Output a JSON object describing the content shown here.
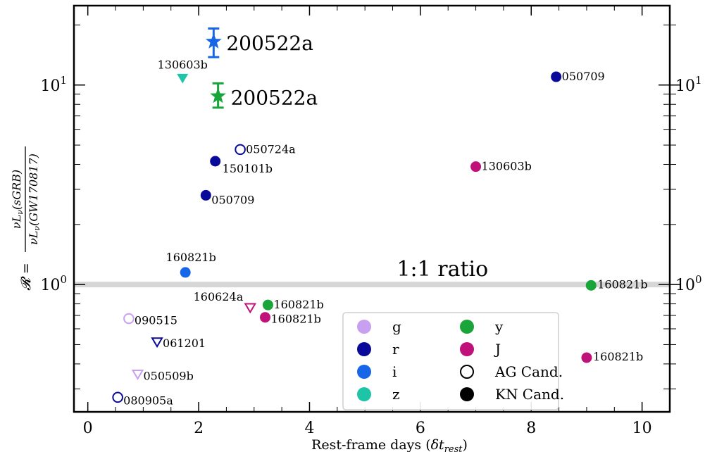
{
  "chart_data": {
    "type": "scatter",
    "xlabel": "Rest-frame days (δt_rest)",
    "ylabel": "R = νLν(sGRB) / νLν(GW170817)",
    "ylabel_parts": {
      "lhs": "𝓡 =",
      "numerator": "νL",
      "numerator_sub": "ν",
      "numerator_arg": "(sGRB)",
      "denominator": "νL",
      "denominator_sub": "ν",
      "denominator_arg": "(GW170817)"
    },
    "xlabel_parts": {
      "main": "Rest-frame days (",
      "delta": "δt",
      "sub": "rest",
      "close": ")"
    },
    "xlim": [
      -0.25,
      10.5
    ],
    "ylim": [
      0.23,
      25
    ],
    "yscale": "log",
    "x_ticks": [
      "0",
      "2",
      "4",
      "6",
      "8",
      "10"
    ],
    "y_ticks": [
      {
        "value": 1,
        "base": "10",
        "exp": "0"
      },
      {
        "value": 10,
        "base": "10",
        "exp": "1"
      }
    ],
    "reference_line": {
      "y": 1,
      "label": "1:1 ratio"
    },
    "colors": {
      "g": "#c9a0f0",
      "r": "#0a0a9a",
      "i": "#1766e8",
      "z": "#1ec4a8",
      "y": "#1aa53a",
      "J": "#c0107a",
      "ref_line": "#d6d6d6"
    },
    "legend": {
      "position": "lower-right",
      "entries": [
        {
          "label": "g",
          "marker": "circle-filled",
          "color": "#c9a0f0"
        },
        {
          "label": "r",
          "marker": "circle-filled",
          "color": "#0a0a9a"
        },
        {
          "label": "i",
          "marker": "circle-filled",
          "color": "#1766e8"
        },
        {
          "label": "z",
          "marker": "circle-filled",
          "color": "#1ec4a8"
        },
        {
          "label": "y",
          "marker": "circle-filled",
          "color": "#1aa53a"
        },
        {
          "label": "J",
          "marker": "circle-filled",
          "color": "#c0107a"
        },
        {
          "label": "AG Cand.",
          "marker": "circle-open",
          "color": "#000000"
        },
        {
          "label": "KN Cand.",
          "marker": "circle-filled",
          "color": "#000000"
        }
      ]
    },
    "points": [
      {
        "label": "200522a",
        "x": 2.27,
        "y": 16.5,
        "yerr": [
          13.8,
          19.2
        ],
        "band": "i",
        "marker": "star",
        "big": true
      },
      {
        "label": "200522a",
        "x": 2.35,
        "y": 8.8,
        "yerr": [
          7.7,
          10.2
        ],
        "band": "y",
        "marker": "star",
        "big": true
      },
      {
        "label": "130603b",
        "x": 1.71,
        "y": 10.8,
        "band": "z",
        "marker": "triangle-filled"
      },
      {
        "label": "050709",
        "x": 8.45,
        "y": 11.0,
        "band": "r",
        "marker": "circle-filled"
      },
      {
        "label": "050724a",
        "x": 2.75,
        "y": 4.75,
        "band": "r",
        "marker": "circle-open"
      },
      {
        "label": "150101b",
        "x": 2.3,
        "y": 4.15,
        "band": "r",
        "marker": "circle-filled"
      },
      {
        "label": "050709",
        "x": 2.13,
        "y": 2.8,
        "band": "r",
        "marker": "circle-filled"
      },
      {
        "label": "130603b",
        "x": 7.0,
        "y": 3.9,
        "band": "J",
        "marker": "circle-filled"
      },
      {
        "label": "160821b",
        "x": 1.76,
        "y": 1.15,
        "band": "i",
        "marker": "circle-filled"
      },
      {
        "label": "160821b",
        "x": 9.08,
        "y": 0.99,
        "band": "y",
        "marker": "circle-filled"
      },
      {
        "label": "160624a",
        "x": 2.93,
        "y": 0.765,
        "band": "J",
        "marker": "triangle-open"
      },
      {
        "label": "160821b",
        "x": 3.25,
        "y": 0.79,
        "band": "y",
        "marker": "circle-filled"
      },
      {
        "label": "160821b",
        "x": 3.2,
        "y": 0.685,
        "band": "J",
        "marker": "circle-filled"
      },
      {
        "label": "090515",
        "x": 0.74,
        "y": 0.675,
        "band": "g",
        "marker": "circle-open"
      },
      {
        "label": "061201",
        "x": 1.25,
        "y": 0.515,
        "band": "r",
        "marker": "triangle-open"
      },
      {
        "label": "160821b",
        "x": 9.0,
        "y": 0.43,
        "band": "J",
        "marker": "circle-filled"
      },
      {
        "label": "050509b",
        "x": 0.9,
        "y": 0.355,
        "band": "g",
        "marker": "triangle-open"
      },
      {
        "label": "080905a",
        "x": 0.54,
        "y": 0.272,
        "band": "r",
        "marker": "circle-open"
      }
    ]
  }
}
